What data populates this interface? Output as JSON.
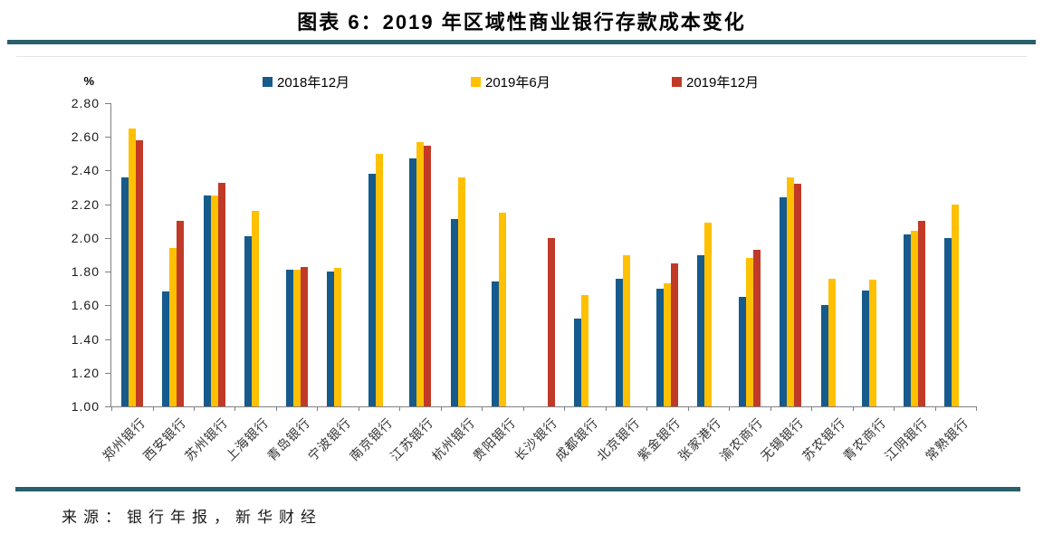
{
  "page": {
    "source_note": "来源：银行年报，新华财经"
  },
  "colors": {
    "divider_teal": "#2A5F6C",
    "axis_gray": "#808080",
    "series_blue": "#175A8C",
    "series_yellow": "#FFC000",
    "series_red": "#C13A28"
  },
  "chart_data": {
    "type": "bar",
    "title": "图表 6：2019 年区域性商业银行存款成本变化",
    "unit_label": "%",
    "ylabel": "%",
    "ylim": [
      1.0,
      2.8
    ],
    "ytick_step": 0.2,
    "grid": false,
    "legend_position": "top",
    "categories": [
      "郑州银行",
      "西安银行",
      "苏州银行",
      "上海银行",
      "青岛银行",
      "宁波银行",
      "南京银行",
      "江苏银行",
      "杭州银行",
      "贵阳银行",
      "长沙银行",
      "成都银行",
      "北京银行",
      "紫金银行",
      "张家港行",
      "渝农商行",
      "无锡银行",
      "苏农银行",
      "青农商行",
      "江阴银行",
      "常熟银行"
    ],
    "series": [
      {
        "name": "2018年12月",
        "color": "#175A8C",
        "values": [
          2.36,
          1.68,
          2.25,
          2.01,
          1.81,
          1.8,
          2.38,
          2.47,
          2.11,
          1.74,
          null,
          1.52,
          1.76,
          1.7,
          1.9,
          1.65,
          2.24,
          1.6,
          1.69,
          2.02,
          2.0
        ]
      },
      {
        "name": "2019年6月",
        "color": "#FFC000",
        "values": [
          2.65,
          1.94,
          2.25,
          2.16,
          1.81,
          1.82,
          2.5,
          2.57,
          2.36,
          2.15,
          null,
          1.66,
          1.9,
          1.73,
          2.09,
          1.88,
          2.36,
          1.76,
          1.75,
          2.04,
          2.2
        ]
      },
      {
        "name": "2019年12月",
        "color": "#C13A28",
        "values": [
          2.58,
          2.1,
          2.33,
          null,
          1.83,
          null,
          null,
          2.55,
          null,
          null,
          2.0,
          null,
          null,
          1.85,
          null,
          1.93,
          2.32,
          null,
          null,
          2.1,
          null
        ]
      }
    ]
  }
}
